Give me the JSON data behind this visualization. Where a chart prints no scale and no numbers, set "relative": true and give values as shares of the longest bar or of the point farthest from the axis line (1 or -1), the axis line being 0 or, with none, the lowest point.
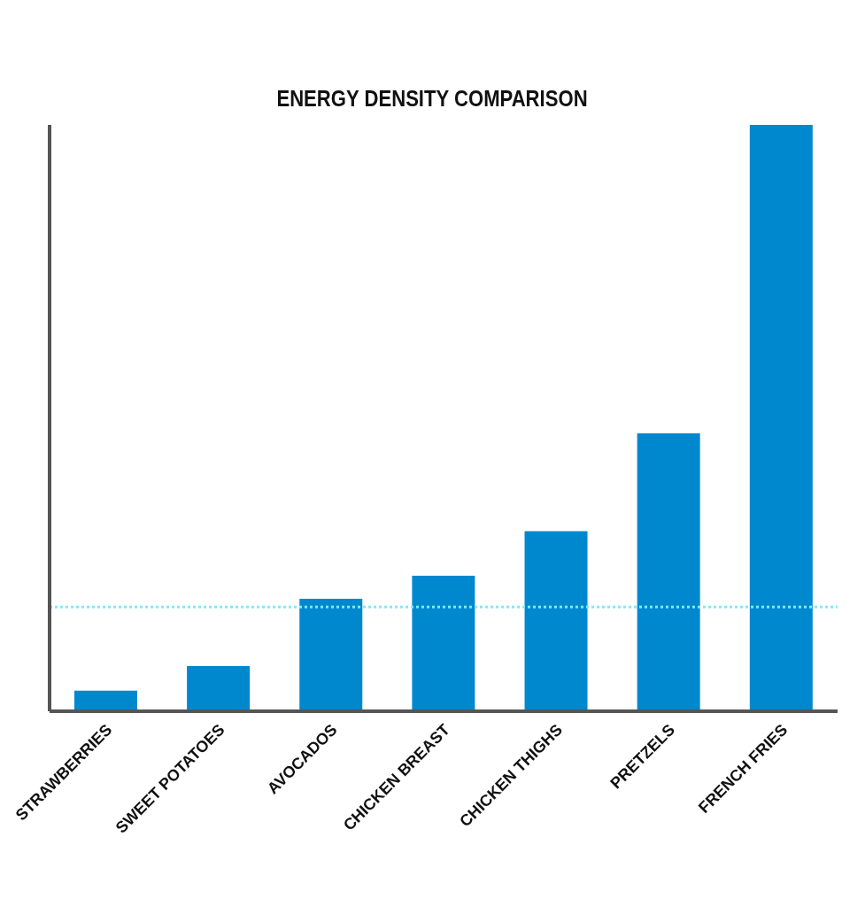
{
  "chart_data": {
    "type": "bar",
    "title": "ENERGY DENSITY COMPARISON",
    "relative": true,
    "categories": [
      "STRAWBERRIES",
      "SWEET POTATOES",
      "AVOCADOS",
      "CHICKEN BREAST",
      "CHICKEN THIGHS",
      "PRETZELS",
      "FRENCH FRIES"
    ],
    "values": [
      0.035,
      0.077,
      0.192,
      0.231,
      0.307,
      0.474,
      1
    ],
    "color": "#0088cf",
    "ref_lines": [
      {
        "axis": "y",
        "value": 0.178,
        "color": "#80eaf5",
        "line_style": "dotted"
      }
    ],
    "grid": false,
    "legend": false
  }
}
